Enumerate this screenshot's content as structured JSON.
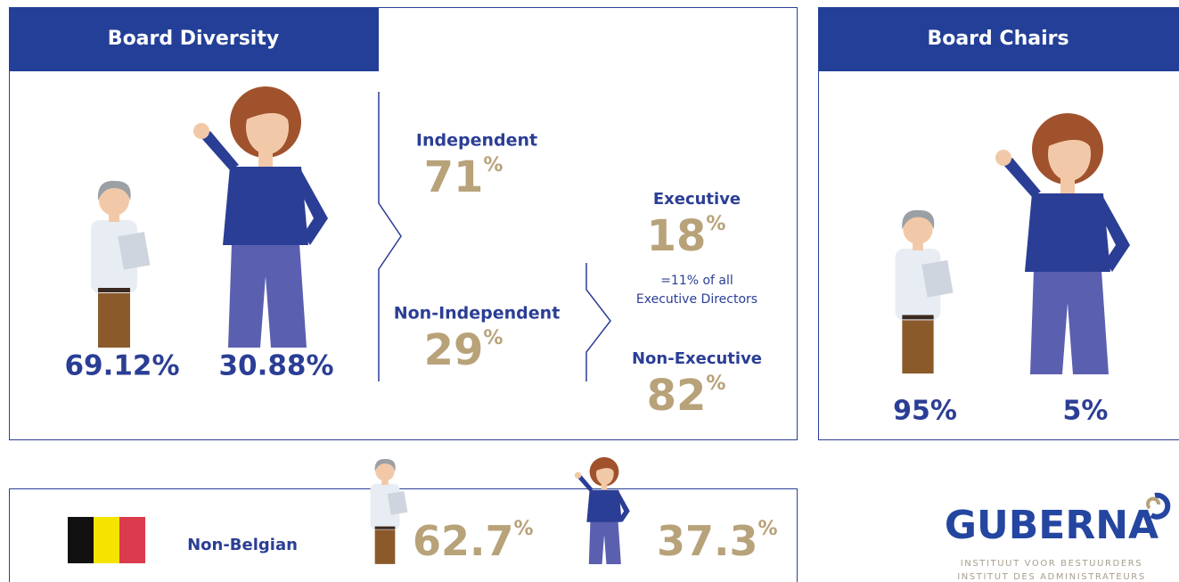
{
  "board_diversity": {
    "title": "Board Diversity",
    "men": "69.12%",
    "women": "30.88%",
    "independent": {
      "label": "Independent",
      "value": "71",
      "unit": "%"
    },
    "non_independent": {
      "label": "Non-Independent",
      "value": "29",
      "unit": "%"
    },
    "executive": {
      "label": "Executive",
      "value": "18",
      "unit": "%",
      "note": [
        "=11% of all",
        "Executive Directors"
      ]
    },
    "non_executive": {
      "label": "Non-Executive",
      "value": "82",
      "unit": "%"
    }
  },
  "board_chairs": {
    "title": "Board Chairs",
    "men": "95%",
    "women": "5%"
  },
  "nationality": {
    "label": "Non-Belgian",
    "men": {
      "value": "62.7",
      "unit": "%"
    },
    "women": {
      "value": "37.3",
      "unit": "%"
    }
  },
  "logo": {
    "name": "GUBERNA",
    "lines": [
      "INSTITUUT VOOR BESTUURDERS",
      "INSTITUT DES ADMINISTRATEURS"
    ]
  }
}
